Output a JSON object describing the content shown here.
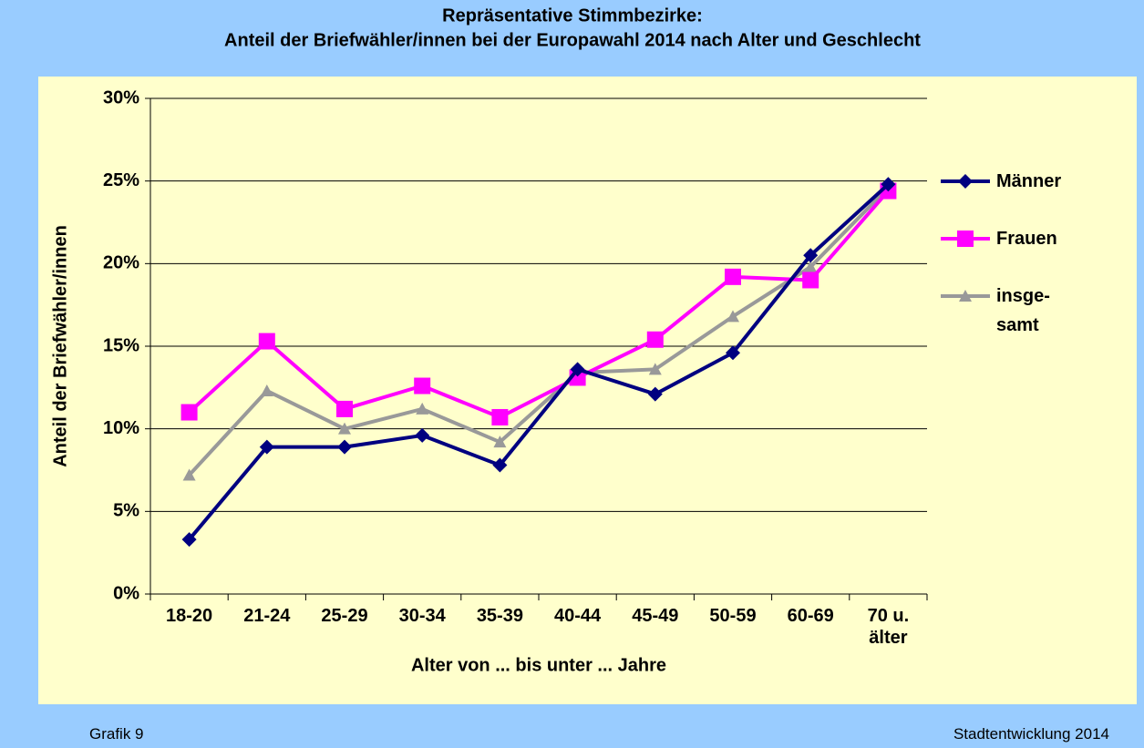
{
  "chart_data": {
    "type": "line",
    "title": "Repräsentative Stimmbezirke:",
    "subtitle": "Anteil der Briefwähler/innen bei der Europawahl 2014 nach Alter und Geschlecht",
    "x_label": "Alter von ... bis unter ... Jahre",
    "y_label": "Anteil der Briefwähler/innen",
    "categories": [
      "18-20",
      "21-24",
      "25-29",
      "30-34",
      "35-39",
      "40-44",
      "45-49",
      "50-59",
      "60-69",
      "70 u. älter"
    ],
    "series": [
      {
        "name": "Männer",
        "color": "#000080",
        "marker": "diamond",
        "values": [
          3.3,
          8.9,
          8.9,
          9.6,
          7.8,
          13.6,
          12.1,
          14.6,
          20.5,
          24.8
        ]
      },
      {
        "name": "Frauen",
        "color": "#ff00ff",
        "marker": "square",
        "values": [
          11.0,
          15.3,
          11.2,
          12.6,
          10.7,
          13.1,
          15.4,
          19.2,
          19.0,
          24.4
        ]
      },
      {
        "name": "insge-samt",
        "color": "#999999",
        "marker": "triangle",
        "values": [
          7.2,
          12.3,
          10.0,
          11.2,
          9.2,
          13.4,
          13.6,
          16.8,
          19.8,
          24.6
        ]
      }
    ],
    "ylim": [
      0,
      30
    ],
    "yticks": [
      {
        "value": 0,
        "label": "0%"
      },
      {
        "value": 5,
        "label": "5%"
      },
      {
        "value": 10,
        "label": "10%"
      },
      {
        "value": 15,
        "label": "15%"
      },
      {
        "value": 20,
        "label": "20%"
      },
      {
        "value": 25,
        "label": "25%"
      },
      {
        "value": 30,
        "label": "30%"
      }
    ],
    "grid": true,
    "legend": "right",
    "footer_left": "Grafik 9",
    "footer_right": "Stadtentwicklung 2014"
  }
}
